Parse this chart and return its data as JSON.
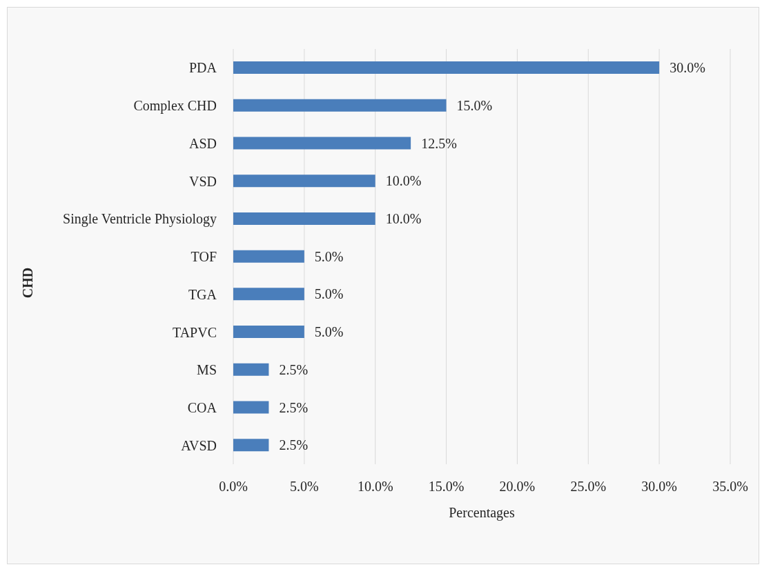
{
  "chart_data": {
    "type": "bar",
    "orientation": "horizontal",
    "categories": [
      "PDA",
      "Complex CHD",
      "ASD",
      "VSD",
      "Single Ventricle Physiology",
      "TOF",
      "TGA",
      "TAPVC",
      "MS",
      "COA",
      "AVSD"
    ],
    "values": [
      30,
      15,
      12.5,
      10,
      10,
      5,
      5,
      5,
      2.5,
      2.5,
      2.5
    ],
    "value_labels": [
      "30.0%",
      "15.0%",
      "12.5%",
      "10.0%",
      "10.0%",
      "5.0%",
      "5.0%",
      "5.0%",
      "2.5%",
      "2.5%",
      "2.5%"
    ],
    "color": "#4a7ebb",
    "xlabel": "Percentages",
    "ylabel": "CHD",
    "xlim": [
      0,
      35
    ],
    "xticks": [
      {
        "value": 0,
        "label": "0.0%"
      },
      {
        "value": 5,
        "label": "5.0%"
      },
      {
        "value": 10,
        "label": "10.0%"
      },
      {
        "value": 15,
        "label": "15.0%"
      },
      {
        "value": 20,
        "label": "20.0%"
      },
      {
        "value": 25,
        "label": "25.0%"
      },
      {
        "value": 30,
        "label": "30.0%"
      },
      {
        "value": 35,
        "label": "35.0%"
      }
    ],
    "grid": "x",
    "legend": false
  }
}
